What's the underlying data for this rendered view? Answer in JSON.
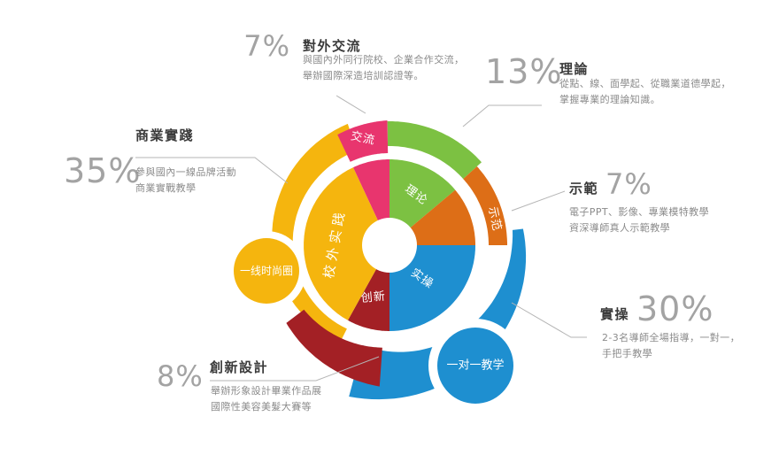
{
  "chart_data": {
    "type": "pie",
    "variant": "layered-donut-infographic",
    "title": "",
    "unit": "%",
    "total": 100,
    "legend_position": "callouts-around-chart",
    "background": "#ffffff",
    "segments": [
      {
        "id": "lilun",
        "label": "理论",
        "callout_title": "理論",
        "pct": 13,
        "pct_label": "13%",
        "color": "#7cc142",
        "desc": [
          "從點、線、面學起、從職業道德學起，",
          "掌握專業的理論知識。"
        ]
      },
      {
        "id": "shifan",
        "label": "示范",
        "callout_title": "示範",
        "pct": 7,
        "pct_label": "7%",
        "color": "#dd6e17",
        "desc": [
          "電子PPT、影像、專業模特教學",
          "資深導師真人示範教學"
        ]
      },
      {
        "id": "shicao",
        "label": "实操",
        "callout_title": "實操",
        "pct": 30,
        "pct_label": "30%",
        "color": "#1e8fd0",
        "desc": [
          "2-3名導師全場指導，一對一，",
          "手把手教學"
        ]
      },
      {
        "id": "chuangxin",
        "label": "创新",
        "callout_title": "創新設計",
        "pct": 8,
        "pct_label": "8%",
        "color": "#a32025",
        "desc": [
          "舉辦形象設計畢業作品展",
          "國際性美容美髮大賽等"
        ]
      },
      {
        "id": "xiaowai",
        "label": "校外实践",
        "callout_title": "商業實踐",
        "pct": 35,
        "pct_label": "35%",
        "color": "#f5b50e",
        "desc": [
          "參與國內一線品牌活動",
          "商業實戰教學"
        ]
      },
      {
        "id": "jiaoliu",
        "label": "交流",
        "callout_title": "對外交流",
        "pct": 7,
        "pct_label": "7%",
        "color": "#e8356e",
        "desc": [
          "與國內外同行院校、企業合作交流，",
          "舉辦國際深造培訓認證等。"
        ]
      }
    ],
    "satellites": [
      {
        "label": "一线时尚圈",
        "color": "#f5b50e"
      },
      {
        "label": "一对一教学",
        "color": "#1e8fd0"
      }
    ]
  }
}
